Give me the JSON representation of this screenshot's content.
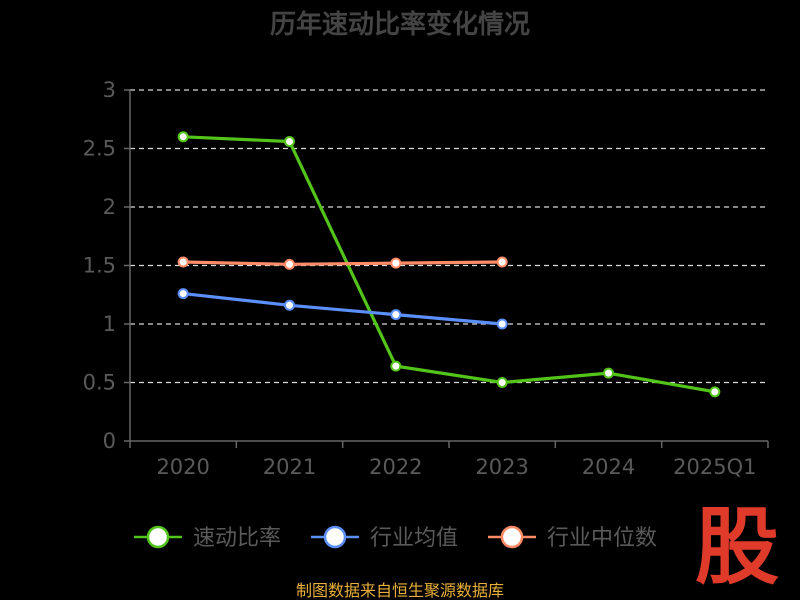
{
  "chart_data": {
    "type": "line",
    "title": "历年速动比率变化情况",
    "categories": [
      "2020",
      "2021",
      "2022",
      "2023",
      "2024",
      "2025Q1"
    ],
    "ylim": [
      0,
      3
    ],
    "yticks": [
      "0",
      "0.5",
      "1",
      "1.5",
      "2",
      "2.5",
      "3"
    ],
    "grid": "horizontal-dashed",
    "legend_position": "bottom",
    "series": [
      {
        "name": "速动比率",
        "color": "#52c41a",
        "values": [
          2.6,
          2.56,
          0.64,
          0.5,
          0.58,
          0.42
        ]
      },
      {
        "name": "行业均值",
        "color": "#5b8ff9",
        "values": [
          1.26,
          1.16,
          1.08,
          1.0,
          null,
          null
        ]
      },
      {
        "name": "行业中位数",
        "color": "#ff8c69",
        "values": [
          1.53,
          1.51,
          1.52,
          1.53,
          null,
          null
        ]
      }
    ]
  },
  "source": "制图数据来自恒生聚源数据库",
  "logo": "股"
}
